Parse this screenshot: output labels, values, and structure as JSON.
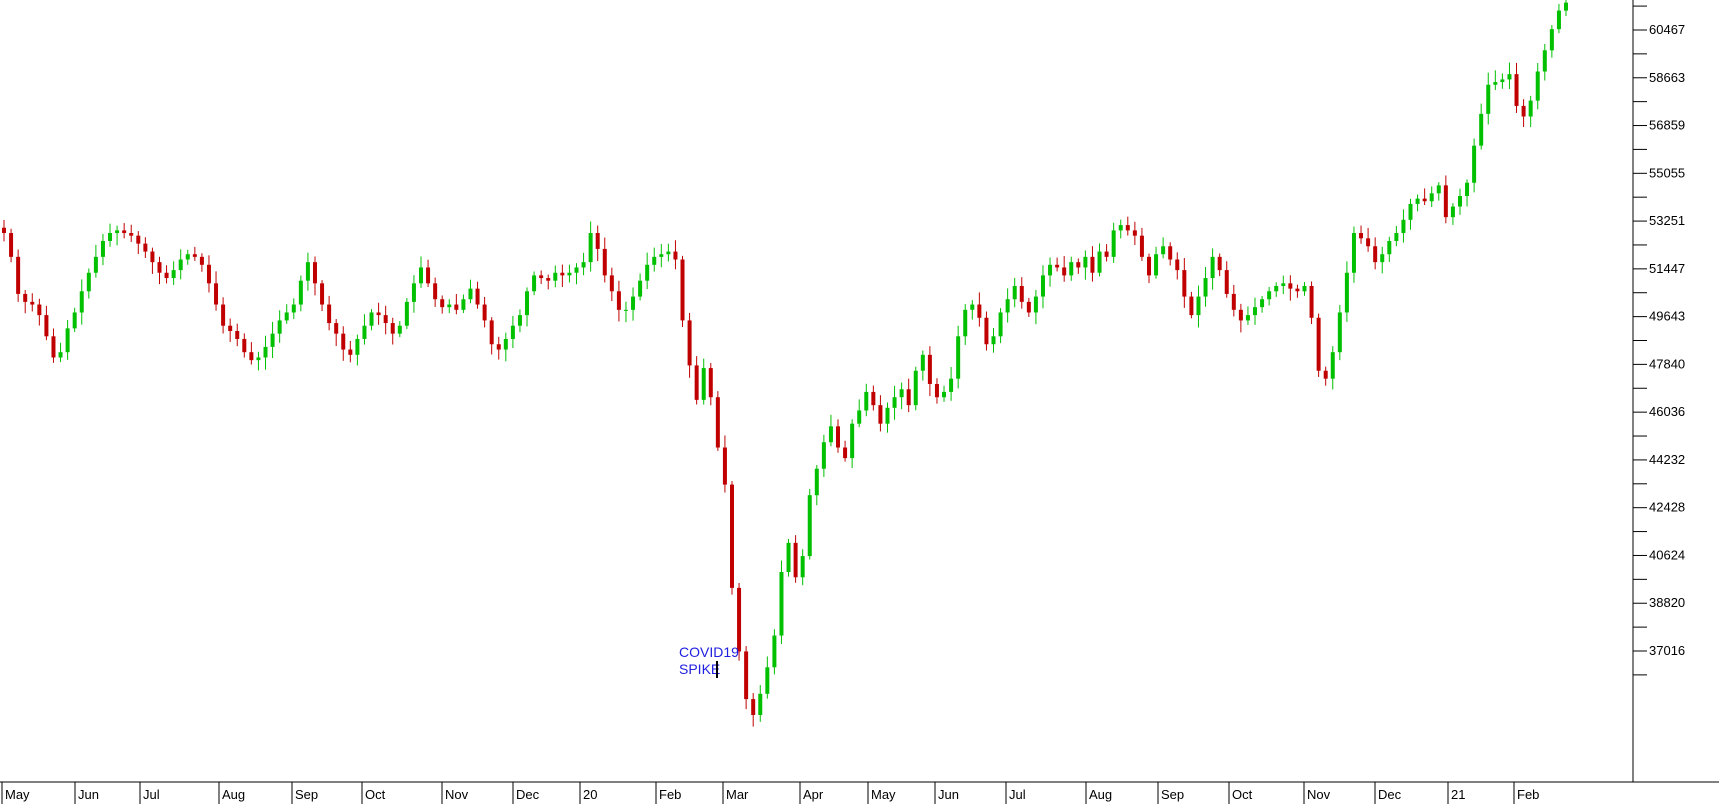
{
  "chart_data": {
    "type": "candlestick",
    "title": "",
    "xlabel": "",
    "ylabel": "",
    "ylim": [
      34200,
      62400
    ],
    "y_tick_labels": [
      "60467",
      "58663",
      "56859",
      "55055",
      "53251",
      "51447",
      "49643",
      "47840",
      "46036",
      "44232",
      "42428",
      "40624",
      "38820",
      "37016"
    ],
    "x_tick_labels": [
      "May",
      "Jun",
      "Jul",
      "Aug",
      "Sep",
      "Oct",
      "Nov",
      "Dec",
      "20",
      "Feb",
      "Mar",
      "Apr",
      "May",
      "Jun",
      "Jul",
      "Aug",
      "Sep",
      "Oct",
      "Nov",
      "Dec",
      "21",
      "Feb"
    ],
    "grid": false,
    "colors": {
      "up": "#00c000",
      "down": "#c00000",
      "annotation": "#2020e0",
      "axis": "#000000"
    },
    "annotations": [
      {
        "lines": [
          "COVID19",
          "SPIKE"
        ]
      }
    ],
    "series": [
      {
        "closes_by_session": [
          52800,
          51900,
          50500,
          50200,
          50100,
          49700,
          48900,
          48100,
          48300,
          49200,
          49800,
          50600,
          51300,
          51900,
          52500,
          52800,
          52900,
          52800,
          52700,
          52400,
          52100,
          51700,
          51300,
          51100,
          51400,
          51800,
          52000,
          51900,
          51600,
          50900,
          50100,
          49300,
          49100,
          48800,
          48300,
          48000,
          48100,
          48500,
          49000,
          49500,
          49800,
          50100,
          51000,
          51700,
          50900,
          50100,
          49400,
          49000,
          48400,
          48200,
          48800,
          49300,
          49800,
          49700,
          49400,
          49000,
          49300,
          50200,
          50900,
          51500,
          50900,
          50300,
          50000,
          50100,
          49900,
          50300,
          50700,
          50100,
          49500,
          48600,
          48400,
          48800,
          49300,
          49700,
          50600,
          51200,
          51100,
          51000,
          51300,
          51200,
          51300,
          51500,
          51700,
          52800,
          52200,
          51200,
          50600,
          49900,
          49900,
          50400,
          51000,
          51600,
          51900,
          52000,
          52100,
          51800,
          49500,
          47800,
          46500,
          47700,
          46600,
          44700,
          43300,
          39400,
          37000,
          35200,
          34600,
          35400,
          36400,
          37600,
          40000,
          41100,
          39800,
          40600,
          42900,
          43900,
          44900,
          45500,
          44700,
          44300,
          45600,
          46100,
          46800,
          46300,
          45600,
          46200,
          46600,
          46900,
          46300,
          47600,
          48200,
          47100,
          46600,
          46800,
          47300,
          48900,
          49900,
          50100,
          49600,
          48600,
          48900,
          49800,
          50300,
          50800,
          50200,
          49800,
          50400,
          51200,
          51600,
          51500,
          51200,
          51700,
          51500,
          51900,
          51300,
          52100,
          51900,
          52900,
          53100,
          52900,
          52700,
          51900,
          51200,
          52000,
          52300,
          51800,
          51400,
          50400,
          49700,
          50400,
          51100,
          51900,
          51400,
          50500,
          49900,
          49500,
          49700,
          50000,
          50300,
          50600,
          50800,
          50900,
          50700,
          50600,
          50800,
          49600,
          47600,
          47300,
          48300,
          49800,
          51300,
          52800,
          52600,
          52300,
          51700,
          52000,
          52500,
          52800,
          53300,
          53900,
          54100,
          54000,
          54300,
          54600,
          53400,
          53800,
          54200,
          54700,
          56100,
          57300,
          58400,
          58500,
          58600,
          58800,
          57600,
          57200,
          57800,
          58900,
          59700,
          60500,
          61200,
          61500
        ]
      }
    ]
  }
}
